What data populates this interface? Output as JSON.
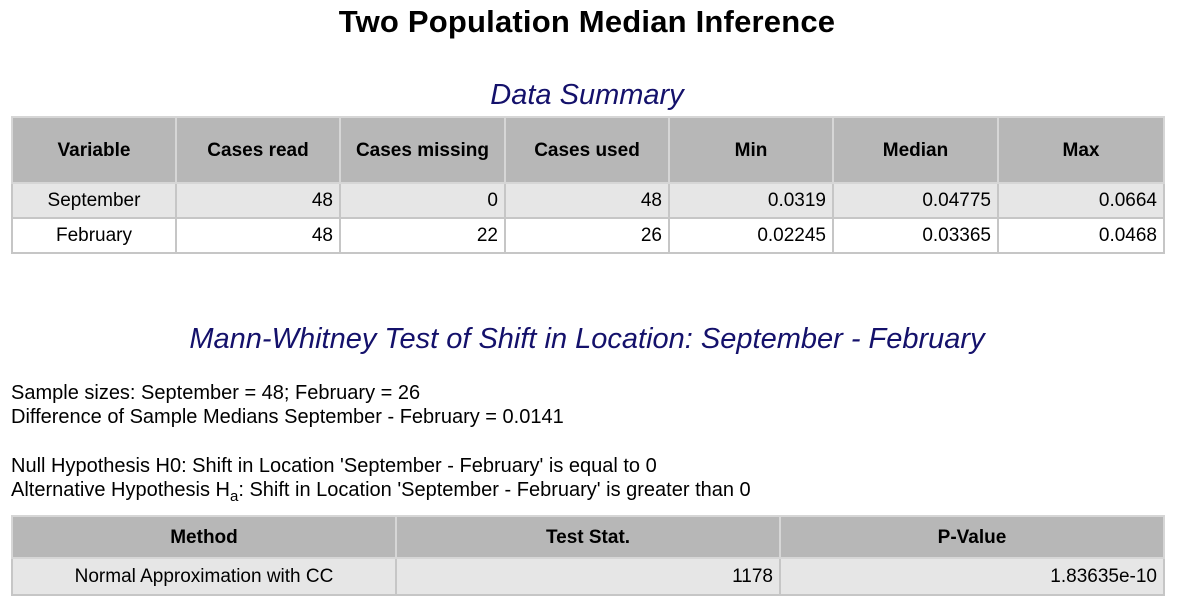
{
  "page_title": "Two Population Median Inference",
  "summary": {
    "title": "Data Summary",
    "headers": [
      "Variable",
      "Cases read",
      "Cases missing",
      "Cases used",
      "Min",
      "Median",
      "Max"
    ],
    "rows": [
      [
        "September",
        "48",
        "0",
        "48",
        "0.0319",
        "0.04775",
        "0.0664"
      ],
      [
        "February",
        "48",
        "22",
        "26",
        "0.02245",
        "0.03365",
        "0.0468"
      ]
    ]
  },
  "test": {
    "title": "Mann-Whitney Test of Shift in Location: September - February",
    "sample_sizes": "Sample sizes: September = 48; February = 26",
    "difference": "Difference of Sample Medians September - February = 0.0141",
    "null_hypothesis": "Null Hypothesis H0: Shift in Location 'September - February' is equal to 0",
    "alt_hypothesis_prefix": "Alternative Hypothesis H",
    "alt_hypothesis_sub": "a",
    "alt_hypothesis_rest": ": Shift in Location 'September - February' is greater than 0",
    "headers": [
      "Method",
      "Test Stat.",
      "P-Value"
    ],
    "rows": [
      [
        "Normal Approximation with CC",
        "1178",
        "1.83635e-10"
      ]
    ]
  }
}
